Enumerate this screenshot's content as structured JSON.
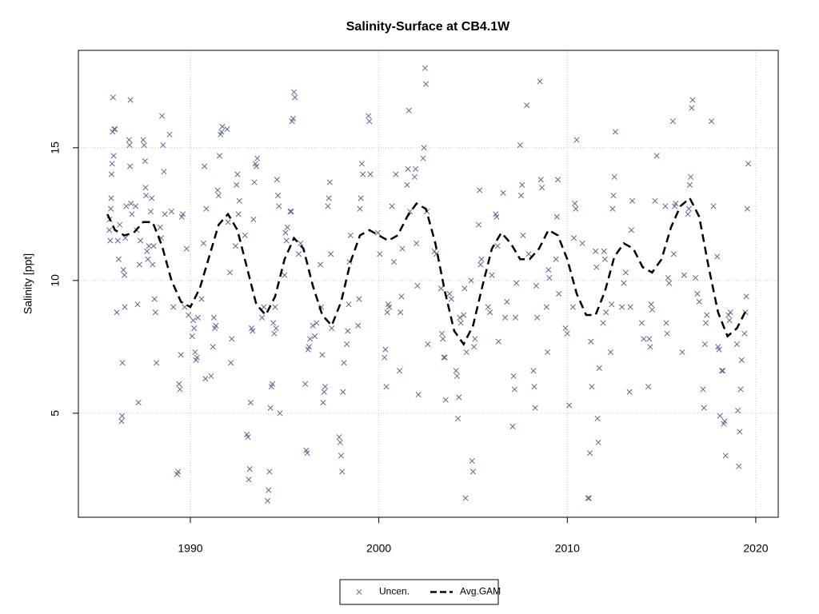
{
  "chart_data": {
    "type": "scatter",
    "title": "Salinity-Surface at CB4.1W",
    "y_label": "Salinity [ppt]",
    "xlim": [
      1984.06,
      2021.19
    ],
    "xticks": [
      1990,
      2000,
      2010,
      2020
    ],
    "ylim": [
      1.08,
      18.67
    ],
    "yticks": [
      5,
      10,
      15
    ],
    "grid": true,
    "legend": "bottom",
    "series": [
      {
        "name": "Uncen.",
        "kind": "markers",
        "color": "#5a6a8c",
        "x": [
          1985.7,
          1985.72,
          1985.75,
          1985.78,
          1985.8,
          1985.82,
          1985.85,
          1985.88,
          1985.9,
          1985.93,
          1985.96,
          1986.0,
          1986.1,
          1986.15,
          1986.2,
          1986.25,
          1986.35,
          1986.38,
          1986.4,
          1986.45,
          1986.5,
          1986.52,
          1986.55,
          1986.6,
          1986.75,
          1986.78,
          1986.8,
          1986.82,
          1986.85,
          1986.9,
          1987.1,
          1987.15,
          1987.2,
          1987.25,
          1987.3,
          1987.35,
          1987.5,
          1987.55,
          1987.6,
          1987.62,
          1987.65,
          1987.7,
          1987.75,
          1987.8,
          1987.9,
          1987.95,
          1988.0,
          1988.05,
          1988.1,
          1988.15,
          1988.2,
          1988.4,
          1988.45,
          1988.5,
          1988.55,
          1988.6,
          1988.65,
          1988.9,
          1989.0,
          1989.1,
          1989.3,
          1989.35,
          1989.4,
          1989.45,
          1989.5,
          1989.55,
          1989.6,
          1989.7,
          1989.8,
          1989.9,
          1990.1,
          1990.15,
          1990.2,
          1990.25,
          1990.3,
          1990.35,
          1990.4,
          1990.6,
          1990.7,
          1990.75,
          1990.8,
          1990.85,
          1991.1,
          1991.2,
          1991.25,
          1991.3,
          1991.35,
          1991.45,
          1991.5,
          1991.55,
          1991.6,
          1991.65,
          1991.7,
          1991.95,
          1992.0,
          1992.1,
          1992.15,
          1992.2,
          1992.4,
          1992.45,
          1992.5,
          1992.55,
          1992.6,
          1992.9,
          1993.0,
          1993.05,
          1993.1,
          1993.15,
          1993.2,
          1993.25,
          1993.3,
          1993.35,
          1993.4,
          1993.45,
          1993.5,
          1993.55,
          1993.8,
          1993.9,
          1994.1,
          1994.15,
          1994.2,
          1994.25,
          1994.3,
          1994.35,
          1994.4,
          1994.45,
          1994.5,
          1994.55,
          1994.6,
          1994.65,
          1994.7,
          1994.75,
          1995.0,
          1995.05,
          1995.1,
          1995.15,
          1995.3,
          1995.35,
          1995.4,
          1995.45,
          1995.5,
          1995.55,
          1995.75,
          1995.85,
          1996.1,
          1996.15,
          1996.2,
          1996.25,
          1996.3,
          1996.35,
          1996.5,
          1996.6,
          1996.7,
          1996.9,
          1996.95,
          1997.0,
          1997.05,
          1997.1,
          1997.15,
          1997.3,
          1997.35,
          1997.4,
          1997.45,
          1997.5,
          1997.9,
          1997.95,
          1998.0,
          1998.05,
          1998.1,
          1998.15,
          1998.3,
          1998.35,
          1998.4,
          1998.45,
          1998.5,
          1998.9,
          1998.95,
          1999.0,
          1999.05,
          1999.1,
          1999.15,
          1999.45,
          1999.5,
          1999.55,
          1999.95,
          2000.05,
          2000.3,
          2000.35,
          2000.4,
          2000.45,
          2000.5,
          2000.55,
          2000.7,
          2000.8,
          2000.9,
          2001.1,
          2001.15,
          2001.2,
          2001.25,
          2001.5,
          2001.55,
          2001.6,
          2001.65,
          2001.9,
          2001.95,
          2002.0,
          2002.05,
          2002.1,
          2002.35,
          2002.4,
          2002.45,
          2002.5,
          2002.55,
          2002.6,
          2002.95,
          2003.05,
          2003.3,
          2003.35,
          2003.4,
          2003.45,
          2003.5,
          2003.55,
          2003.75,
          2003.85,
          2004.1,
          2004.15,
          2004.2,
          2004.25,
          2004.3,
          2004.35,
          2004.5,
          2004.55,
          2004.6,
          2004.65,
          2004.9,
          2004.95,
          2005.0,
          2005.05,
          2005.1,
          2005.3,
          2005.35,
          2005.4,
          2005.45,
          2005.8,
          2005.9,
          2006.0,
          2006.2,
          2006.25,
          2006.3,
          2006.35,
          2006.6,
          2006.7,
          2006.8,
          2007.1,
          2007.15,
          2007.2,
          2007.25,
          2007.3,
          2007.5,
          2007.55,
          2007.6,
          2007.65,
          2007.85,
          2007.95,
          2008.2,
          2008.25,
          2008.3,
          2008.35,
          2008.4,
          2008.55,
          2008.6,
          2008.65,
          2008.9,
          2008.95,
          2009.0,
          2009.05,
          2009.4,
          2009.45,
          2009.5,
          2009.55,
          2009.9,
          2010.0,
          2010.1,
          2010.3,
          2010.35,
          2010.4,
          2010.45,
          2010.5,
          2010.8,
          2011.1,
          2011.15,
          2011.2,
          2011.25,
          2011.3,
          2011.5,
          2011.55,
          2011.6,
          2011.65,
          2011.7,
          2011.9,
          2011.95,
          2012.0,
          2012.05,
          2012.3,
          2012.35,
          2012.4,
          2012.45,
          2012.5,
          2012.55,
          2012.9,
          2013.0,
          2013.1,
          2013.3,
          2013.35,
          2013.4,
          2013.45,
          2013.95,
          2014.05,
          2014.3,
          2014.35,
          2014.4,
          2014.45,
          2014.5,
          2014.65,
          2014.75,
          2015.2,
          2015.25,
          2015.3,
          2015.35,
          2015.4,
          2015.6,
          2015.65,
          2015.7,
          2015.75,
          2016.1,
          2016.2,
          2016.4,
          2016.45,
          2016.5,
          2016.55,
          2016.6,
          2016.65,
          2016.8,
          2016.9,
          2017.0,
          2017.2,
          2017.25,
          2017.3,
          2017.35,
          2017.4,
          2017.65,
          2017.75,
          2017.95,
          2018.0,
          2018.05,
          2018.1,
          2018.2,
          2018.25,
          2018.3,
          2018.35,
          2018.4,
          2018.55,
          2018.6,
          2018.65,
          2019.0,
          2019.05,
          2019.1,
          2019.15,
          2019.2,
          2019.25,
          2019.4,
          2019.45,
          2019.5,
          2019.55,
          2019.6
        ],
        "values": [
          11.9,
          12.3,
          11.5,
          12.7,
          13.1,
          14.0,
          14.4,
          15.6,
          16.9,
          14.7,
          15.7,
          15.7,
          8.8,
          11.5,
          10.8,
          12.1,
          4.7,
          4.9,
          6.9,
          10.4,
          10.2,
          9.0,
          11.6,
          12.8,
          15.3,
          15.1,
          14.3,
          16.8,
          12.9,
          12.5,
          12.8,
          11.9,
          9.1,
          5.4,
          10.6,
          11.5,
          15.3,
          15.1,
          14.5,
          13.5,
          13.2,
          11.1,
          10.8,
          11.3,
          12.6,
          13.1,
          10.6,
          11.3,
          9.3,
          8.8,
          6.9,
          12.0,
          11.6,
          16.2,
          15.1,
          14.1,
          12.5,
          15.5,
          12.6,
          9.0,
          2.7,
          2.8,
          6.1,
          5.9,
          7.2,
          12.4,
          12.5,
          9.0,
          11.2,
          8.7,
          7.9,
          8.5,
          8.2,
          7.3,
          7.0,
          7.1,
          8.6,
          9.3,
          11.4,
          14.3,
          6.3,
          12.7,
          6.4,
          7.5,
          8.6,
          8.2,
          8.3,
          13.4,
          13.2,
          14.7,
          15.5,
          15.6,
          15.8,
          15.7,
          12.2,
          10.3,
          6.9,
          7.8,
          11.3,
          13.6,
          14.0,
          12.5,
          13.0,
          11.7,
          4.2,
          4.1,
          2.5,
          2.9,
          5.4,
          8.2,
          8.1,
          12.3,
          13.7,
          14.4,
          14.3,
          14.6,
          8.6,
          9.0,
          1.7,
          2.1,
          2.8,
          5.2,
          6.0,
          6.1,
          8.4,
          8.0,
          9.0,
          8.2,
          13.8,
          13.2,
          12.8,
          5.0,
          10.2,
          11.8,
          11.5,
          12.0,
          12.6,
          12.6,
          16.0,
          16.1,
          17.1,
          16.9,
          11.0,
          11.4,
          6.1,
          3.6,
          3.5,
          7.4,
          7.5,
          7.8,
          8.3,
          7.9,
          8.4,
          10.6,
          9.0,
          7.2,
          5.4,
          5.8,
          6.0,
          12.8,
          13.1,
          13.7,
          11.0,
          8.2,
          4.1,
          3.9,
          3.4,
          2.8,
          5.8,
          6.9,
          7.6,
          8.1,
          9.1,
          10.7,
          11.7,
          8.3,
          9.3,
          12.7,
          13.1,
          14.4,
          14.0,
          16.2,
          16.0,
          14.0,
          11.8,
          11.0,
          7.1,
          7.4,
          6.0,
          8.8,
          9.1,
          9.0,
          12.8,
          10.7,
          14.0,
          6.6,
          8.8,
          9.4,
          11.2,
          13.6,
          14.2,
          16.4,
          12.6,
          13.9,
          14.2,
          11.4,
          9.8,
          5.7,
          14.6,
          15.0,
          18.0,
          17.4,
          12.6,
          7.6,
          11.1,
          11.0,
          9.7,
          8.0,
          7.8,
          7.1,
          7.1,
          5.5,
          9.5,
          9.3,
          6.6,
          6.4,
          4.8,
          5.6,
          8.6,
          8.4,
          8.7,
          9.7,
          1.8,
          7.3,
          10.0,
          3.2,
          2.8,
          7.5,
          7.8,
          12.1,
          13.4,
          10.6,
          10.8,
          9.0,
          8.8,
          10.2,
          12.5,
          12.4,
          11.3,
          7.7,
          13.3,
          8.6,
          9.2,
          4.5,
          6.4,
          5.9,
          8.6,
          9.9,
          15.1,
          13.2,
          13.6,
          11.7,
          16.6,
          11.0,
          6.6,
          6.0,
          5.2,
          9.8,
          8.6,
          17.5,
          13.8,
          13.5,
          9.0,
          7.3,
          10.4,
          10.1,
          10.8,
          12.4,
          13.8,
          9.5,
          8.2,
          8.0,
          5.3,
          9.0,
          11.6,
          12.9,
          12.7,
          15.3,
          11.4,
          1.8,
          1.8,
          3.5,
          7.7,
          6.0,
          11.1,
          10.5,
          4.8,
          3.9,
          6.7,
          8.4,
          11.1,
          10.8,
          8.8,
          7.3,
          9.1,
          12.7,
          13.2,
          13.9,
          15.6,
          9.0,
          9.9,
          10.3,
          5.8,
          9.0,
          11.9,
          13.0,
          8.4,
          7.8,
          6.0,
          7.8,
          7.5,
          9.1,
          8.9,
          13.0,
          14.7,
          12.8,
          8.4,
          8.0,
          10.1,
          9.9,
          16.0,
          11.0,
          12.8,
          12.9,
          7.3,
          10.2,
          12.5,
          12.7,
          13.6,
          13.9,
          16.5,
          16.8,
          10.1,
          9.5,
          9.2,
          5.9,
          5.2,
          7.6,
          8.4,
          8.7,
          16.0,
          12.8,
          10.9,
          7.5,
          7.4,
          4.9,
          6.6,
          6.6,
          4.6,
          4.7,
          3.4,
          8.7,
          8.5,
          8.8,
          7.6,
          5.1,
          3.0,
          4.3,
          5.9,
          7.0,
          8.0,
          8.8,
          9.4,
          12.7,
          14.4
        ]
      },
      {
        "name": "Avg.GAM",
        "kind": "dashed-line",
        "color": "#000000",
        "x": [
          1985.6,
          1986.0,
          1986.5,
          1987.0,
          1987.5,
          1988.0,
          1988.5,
          1989.0,
          1989.5,
          1990.0,
          1990.5,
          1991.0,
          1991.5,
          1992.0,
          1992.5,
          1993.0,
          1993.5,
          1994.0,
          1994.5,
          1995.0,
          1995.5,
          1996.0,
          1996.5,
          1997.0,
          1997.5,
          1998.0,
          1998.5,
          1999.0,
          1999.5,
          2000.0,
          2000.5,
          2001.0,
          2001.5,
          2002.0,
          2002.5,
          2003.0,
          2003.5,
          2004.0,
          2004.5,
          2005.0,
          2005.5,
          2006.0,
          2006.5,
          2007.0,
          2007.5,
          2008.0,
          2008.5,
          2009.0,
          2009.5,
          2010.0,
          2010.5,
          2011.0,
          2011.5,
          2012.0,
          2012.5,
          2013.0,
          2013.5,
          2014.0,
          2014.5,
          2015.0,
          2015.5,
          2016.0,
          2016.5,
          2017.0,
          2017.5,
          2018.0,
          2018.5,
          2019.0,
          2019.5
        ],
        "values": [
          12.5,
          11.9,
          11.7,
          11.8,
          12.2,
          12.2,
          11.3,
          10.0,
          9.2,
          9.0,
          9.7,
          10.9,
          12.1,
          12.5,
          11.9,
          10.5,
          9.1,
          8.7,
          9.4,
          10.8,
          11.6,
          11.2,
          9.8,
          8.7,
          8.3,
          9.2,
          10.7,
          11.7,
          11.9,
          11.7,
          11.5,
          11.7,
          12.4,
          12.9,
          12.7,
          11.4,
          9.6,
          8.1,
          7.6,
          8.3,
          9.8,
          11.2,
          11.8,
          11.4,
          10.8,
          10.8,
          11.2,
          11.9,
          11.7,
          10.8,
          9.5,
          8.7,
          8.7,
          9.6,
          10.9,
          11.4,
          11.2,
          10.5,
          10.3,
          10.8,
          12.0,
          12.8,
          13.1,
          12.4,
          10.5,
          8.8,
          7.9,
          8.2,
          8.9
        ]
      }
    ]
  }
}
